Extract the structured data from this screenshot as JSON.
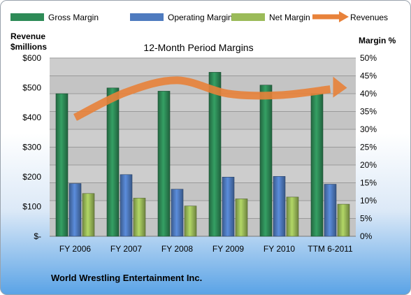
{
  "chart_data": {
    "type": "bar",
    "title": "12-Month Period Margins",
    "categories": [
      "FY 2006",
      "FY 2007",
      "FY 2008",
      "FY 2009",
      "FY 2010",
      "TTM 6-2011"
    ],
    "series": [
      {
        "name": "Gross Margin",
        "axis": "right",
        "kind": "bar",
        "color": "#2e8b57",
        "values": [
          40.0,
          41.6,
          40.7,
          46.0,
          42.4,
          40.0
        ]
      },
      {
        "name": "Operating Margin",
        "axis": "right",
        "kind": "bar",
        "color": "#4f7bbf",
        "values": [
          14.8,
          17.3,
          13.2,
          16.6,
          16.8,
          14.6
        ]
      },
      {
        "name": "Net Margin",
        "axis": "right",
        "kind": "bar",
        "color": "#9bbb59",
        "values": [
          12.0,
          10.7,
          8.5,
          10.5,
          11.0,
          9.0
        ]
      },
      {
        "name": "Revenues",
        "axis": "left",
        "kind": "line",
        "color": "#e8823a",
        "values": [
          400,
          485,
          525,
          480,
          475,
          495
        ]
      }
    ],
    "left_axis": {
      "label_line1": "Revenue",
      "label_line2": "$millions",
      "ylim": [
        0,
        600
      ],
      "ticks": [
        "$-",
        "$100",
        "$200",
        "$300",
        "$400",
        "$500",
        "$600"
      ]
    },
    "right_axis": {
      "label": "Margin %",
      "ylim": [
        0,
        50
      ],
      "ticks": [
        "0%",
        "5%",
        "10%",
        "15%",
        "20%",
        "25%",
        "30%",
        "35%",
        "40%",
        "45%",
        "50%"
      ]
    },
    "grid": true,
    "legend_position": "top"
  },
  "footer": {
    "company": "World Wrestling Entertainment Inc."
  },
  "colors": {
    "plot_bg": "#c4c4c4",
    "plot_bg_alt": "#d6d6d6"
  }
}
